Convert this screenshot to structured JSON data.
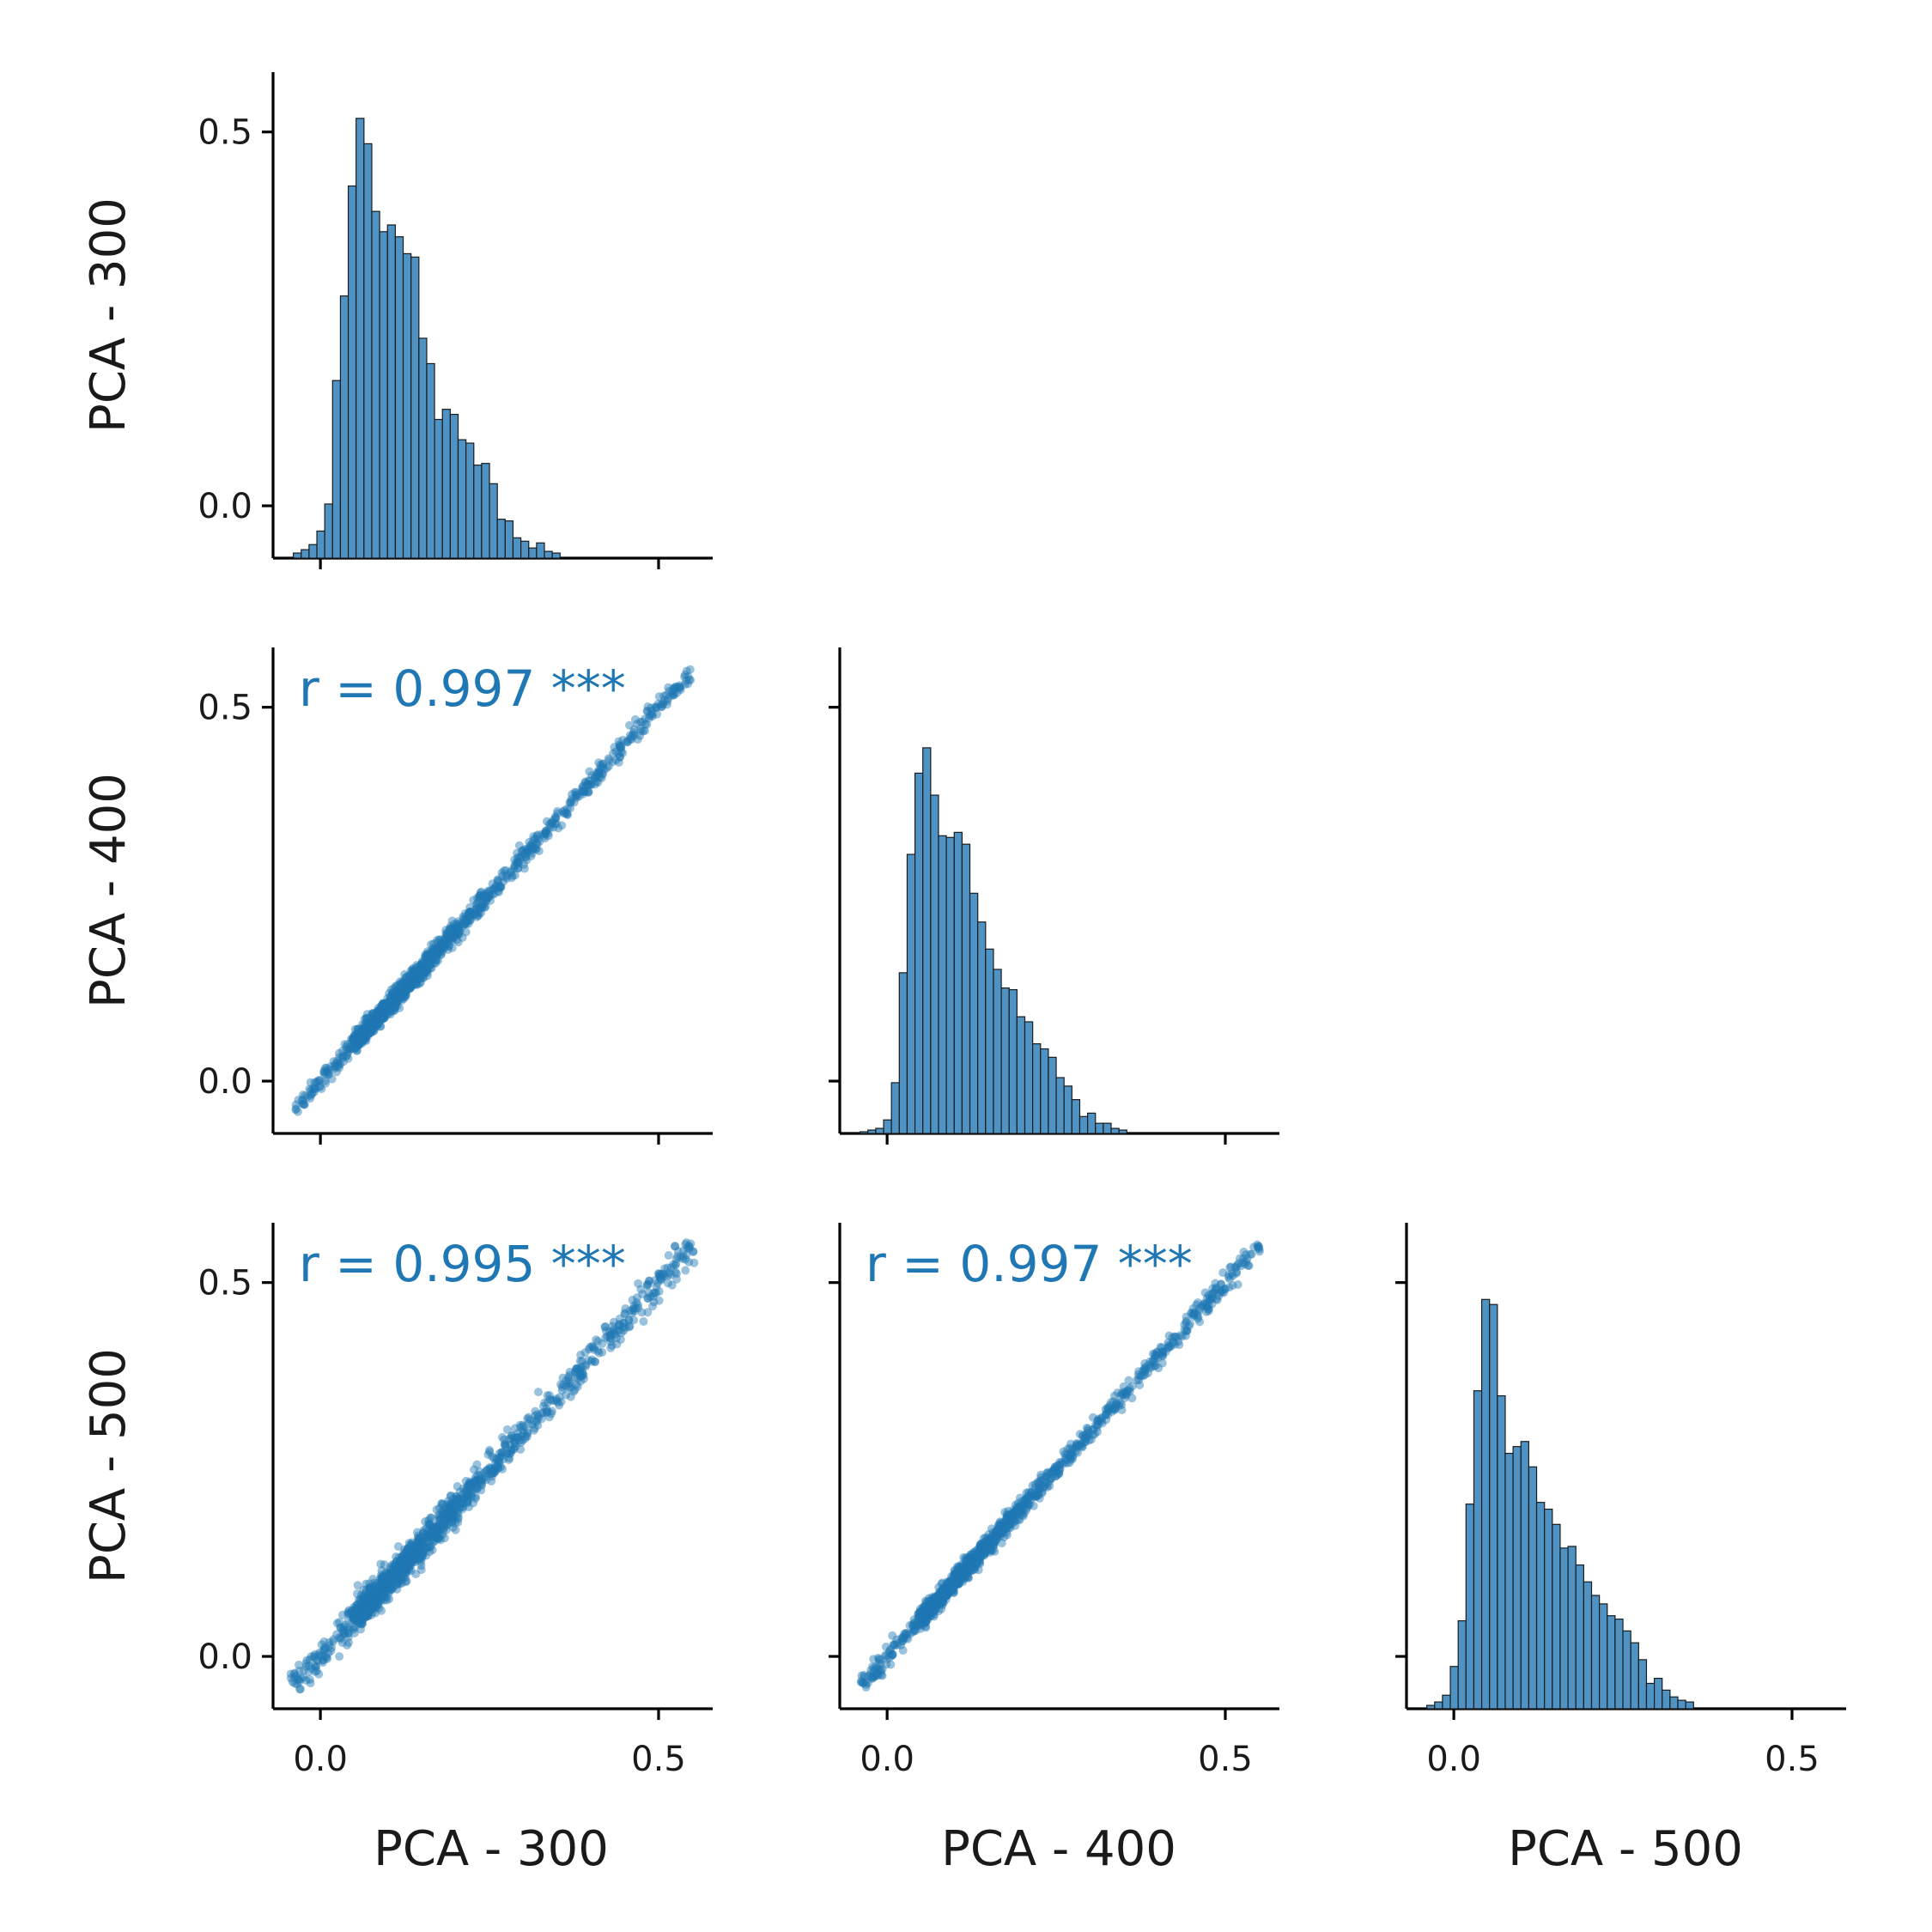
{
  "chart_data": {
    "type": "pairplot",
    "variables": [
      "PCA - 300",
      "PCA - 400",
      "PCA - 500"
    ],
    "shared_range": [
      -0.07,
      0.58
    ],
    "ticks": [
      0.0,
      0.5
    ],
    "tick_labels": [
      "0.0",
      "0.5"
    ],
    "colors": {
      "primary": "#1f77b4",
      "hist_fill": "#4e93c4",
      "edge": "#1b1b1b"
    },
    "histograms": [
      {
        "variable": "PCA - 300",
        "bin_start": -0.04,
        "bin_width": 0.0116,
        "counts": [
          0.3,
          0.5,
          0.8,
          1.6,
          3.2,
          10.5,
          15.5,
          22,
          26,
          24.5,
          20.5,
          19.3,
          19.7,
          19,
          18,
          17.8,
          13,
          11.5,
          8.2,
          8.8,
          8.5,
          7,
          6.8,
          5.5,
          5.6,
          4.4,
          2.3,
          2.2,
          1.2,
          1.0,
          0.6,
          0.9,
          0.4,
          0.3
        ]
      },
      {
        "variable": "PCA - 400",
        "bin_start": -0.04,
        "bin_width": 0.0116,
        "counts": [
          0.1,
          0.2,
          0.3,
          0.8,
          3.0,
          9.5,
          16.5,
          21.3,
          22.8,
          20,
          17.6,
          17.5,
          17.8,
          17.1,
          14.2,
          12.5,
          10.9,
          9.7,
          8.6,
          8.5,
          6.9,
          6.6,
          5.3,
          5.0,
          4.5,
          3.3,
          2.8,
          2.0,
          1.0,
          1.2,
          0.6,
          0.6,
          0.3,
          0.2
        ]
      },
      {
        "variable": "PCA - 500",
        "bin_start": -0.04,
        "bin_width": 0.0116,
        "counts": [
          0.2,
          0.4,
          0.8,
          2.5,
          5.2,
          12.1,
          18.8,
          24.2,
          23.9,
          18.5,
          15.1,
          15.5,
          15.8,
          14.3,
          12.2,
          11.8,
          10.9,
          9.5,
          9.6,
          8.5,
          7.5,
          6.7,
          6.2,
          5.5,
          5.3,
          4.6,
          3.9,
          2.9,
          1.5,
          1.8,
          1.1,
          0.7,
          0.5,
          0.4
        ]
      }
    ],
    "scatter_pairs": [
      {
        "x": "PCA - 300",
        "y": "PCA - 400",
        "r_label": "r =  0.997 ***",
        "r": 0.997,
        "significance": "***"
      },
      {
        "x": "PCA - 300",
        "y": "PCA - 500",
        "r_label": "r =  0.995 ***",
        "r": 0.995,
        "significance": "***"
      },
      {
        "x": "PCA - 400",
        "y": "PCA - 500",
        "r_label": "r =  0.997 ***",
        "r": 0.997,
        "significance": "***"
      }
    ],
    "scatter_range": [
      -0.04,
      0.55
    ],
    "scatter_density": "dense diagonal cloud, n≈5000 points, alpha 0.5"
  }
}
